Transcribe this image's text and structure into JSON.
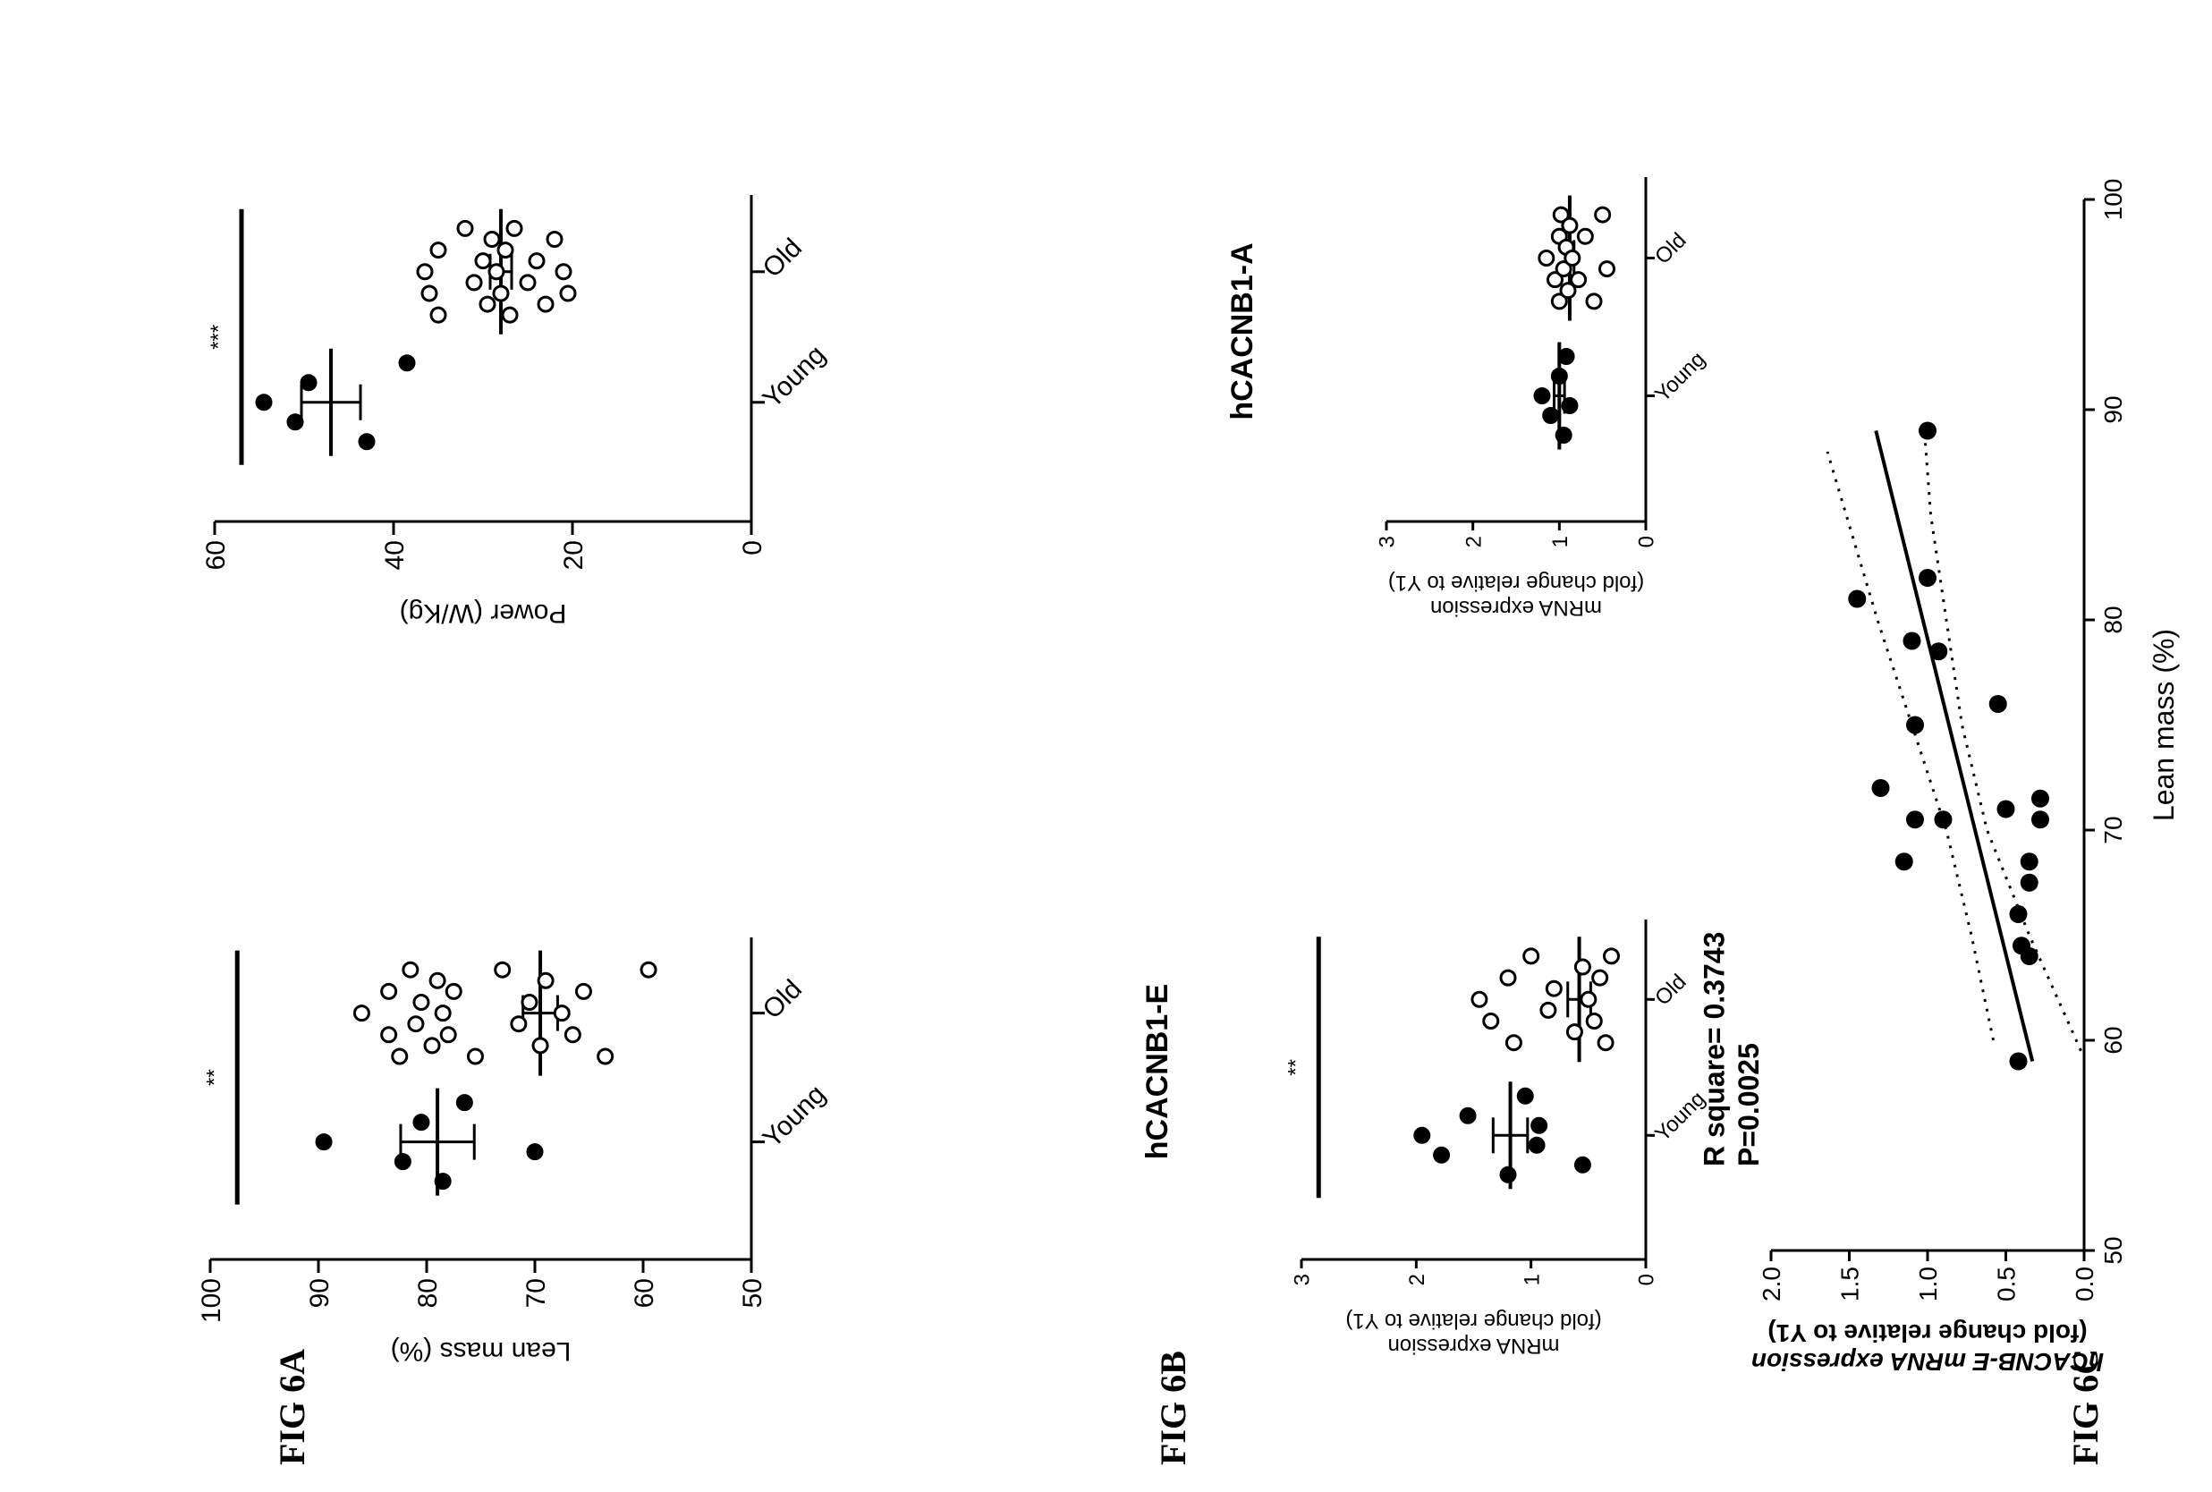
{
  "figure_labels": {
    "a": "FIG 6A",
    "b": "FIG 6B",
    "c": "FIG 6C"
  },
  "chart_data": [
    {
      "id": "6A-left",
      "type": "scatter",
      "categories": [
        "Young",
        "Old"
      ],
      "ylabel": "Lean mass (%)",
      "ylim": [
        50,
        100
      ],
      "yticks": [
        50,
        60,
        70,
        80,
        90,
        100
      ],
      "annotation": "**",
      "series": [
        {
          "group": "Young",
          "filled": true,
          "mean": 79,
          "sem": 3.4,
          "values": [
            89.5,
            82.2,
            80.5,
            78.5,
            76.5,
            70
          ]
        },
        {
          "group": "Old",
          "filled": false,
          "mean": 69.5,
          "sem": 1.6,
          "values": [
            86,
            83.5,
            83.5,
            82.5,
            81.5,
            81,
            80.5,
            79.5,
            79,
            78.5,
            78,
            77.5,
            75.5,
            73,
            71.5,
            70.5,
            69.5,
            69,
            67.5,
            66.5,
            65.5,
            63.5,
            59.5
          ]
        }
      ]
    },
    {
      "id": "6A-right",
      "type": "scatter",
      "categories": [
        "Young",
        "Old"
      ],
      "ylabel": "Power (W/Kg)",
      "ylim": [
        0,
        60
      ],
      "yticks": [
        0,
        20,
        40,
        60
      ],
      "annotation": "***",
      "series": [
        {
          "group": "Young",
          "filled": true,
          "mean": 47,
          "sem": 3.3,
          "values": [
            54.5,
            51,
            49.5,
            43,
            38.5
          ]
        },
        {
          "group": "Old",
          "filled": false,
          "mean": 28,
          "sem": 1.2,
          "values": [
            36.5,
            36,
            35,
            35,
            32,
            31,
            30,
            29.5,
            29,
            28.5,
            28,
            27.5,
            27,
            26.5,
            25,
            24,
            23,
            22,
            21,
            20.5
          ]
        }
      ]
    },
    {
      "id": "6B-left",
      "type": "scatter",
      "title": "hCACNB1-E",
      "categories": [
        "Young",
        "Old"
      ],
      "ylabel": "mRNA expression\n(fold change relative to Y1)",
      "ylim": [
        0,
        3
      ],
      "yticks": [
        0,
        1,
        2,
        3
      ],
      "annotation": "**",
      "series": [
        {
          "group": "Young",
          "filled": true,
          "mean": 1.18,
          "sem": 0.15,
          "values": [
            1.95,
            1.78,
            1.55,
            1.2,
            1.05,
            0.95,
            0.93,
            0.55
          ]
        },
        {
          "group": "Old",
          "filled": false,
          "mean": 0.58,
          "sem": 0.1,
          "values": [
            1.45,
            1.35,
            1.2,
            1.15,
            1.0,
            0.85,
            0.8,
            0.62,
            0.55,
            0.5,
            0.45,
            0.4,
            0.35,
            0.3
          ]
        }
      ]
    },
    {
      "id": "6B-right",
      "type": "scatter",
      "title": "hCACNB1-A",
      "categories": [
        "Young",
        "Old"
      ],
      "ylabel": "mRNA expression\n(fold change relative to Y1)",
      "ylim": [
        0,
        3
      ],
      "yticks": [
        0,
        1,
        2,
        3
      ],
      "series": [
        {
          "group": "Young",
          "filled": true,
          "mean": 1.0,
          "sem": 0.06,
          "values": [
            1.2,
            1.1,
            1.0,
            0.95,
            0.92,
            0.88
          ]
        },
        {
          "group": "Old",
          "filled": false,
          "mean": 0.88,
          "sem": 0.05,
          "values": [
            1.15,
            1.05,
            1.0,
            1.0,
            0.98,
            0.95,
            0.92,
            0.9,
            0.88,
            0.85,
            0.78,
            0.7,
            0.6,
            0.5,
            0.45
          ]
        }
      ]
    },
    {
      "id": "6C",
      "type": "scatter",
      "xlabel": "Lean mass (%)",
      "ylabel": "hCACNB-E mRNA expression\n(fold change relative to Y1)",
      "xlim": [
        50,
        100
      ],
      "ylim": [
        0,
        2
      ],
      "xticks": [
        50,
        60,
        70,
        80,
        90,
        100
      ],
      "yticks": [
        "0.0",
        "0.5",
        "1.0",
        "1.5",
        "2.0"
      ],
      "r_square": "R square= 0.3743",
      "p_value": "P=0.0025",
      "points": [
        {
          "x": 59,
          "y": 0.42
        },
        {
          "x": 64,
          "y": 0.35
        },
        {
          "x": 64.5,
          "y": 0.4
        },
        {
          "x": 66,
          "y": 0.42
        },
        {
          "x": 67.5,
          "y": 0.35
        },
        {
          "x": 68.5,
          "y": 0.35
        },
        {
          "x": 68.5,
          "y": 1.15
        },
        {
          "x": 70.5,
          "y": 0.9
        },
        {
          "x": 70.5,
          "y": 1.08
        },
        {
          "x": 71,
          "y": 0.5
        },
        {
          "x": 70.5,
          "y": 0.28
        },
        {
          "x": 71.5,
          "y": 0.28
        },
        {
          "x": 72,
          "y": 1.3
        },
        {
          "x": 75,
          "y": 1.08
        },
        {
          "x": 76,
          "y": 0.55
        },
        {
          "x": 78.5,
          "y": 0.93
        },
        {
          "x": 79,
          "y": 1.1
        },
        {
          "x": 81,
          "y": 1.45
        },
        {
          "x": 82,
          "y": 1.0
        },
        {
          "x": 89,
          "y": 1.0
        }
      ],
      "fit": {
        "x": [
          59,
          89
        ],
        "y": [
          0.33,
          1.33
        ]
      },
      "ci_upper": {
        "x": [
          60,
          65,
          70,
          75,
          80,
          85,
          88
        ],
        "y": [
          0.58,
          0.72,
          0.88,
          1.1,
          1.32,
          1.52,
          1.64
        ]
      },
      "ci_lower": {
        "x": [
          59.5,
          65,
          70,
          75,
          80,
          85,
          89
        ],
        "y": [
          0.02,
          0.35,
          0.62,
          0.78,
          0.88,
          0.98,
          1.02
        ]
      }
    }
  ]
}
